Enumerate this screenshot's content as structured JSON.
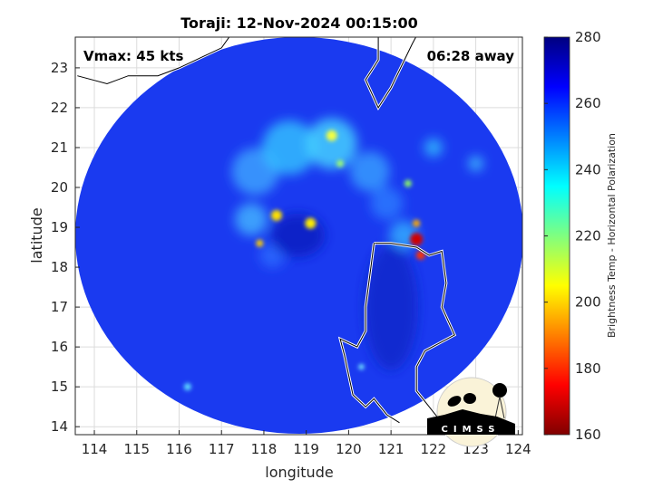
{
  "chart_data": {
    "type": "heatmap",
    "title": "Toraji: 12-Nov-2024 00:15:00",
    "xlabel": "longitude",
    "ylabel": "latitude",
    "xlim": [
      113.55,
      124.1
    ],
    "ylim": [
      13.8,
      23.77
    ],
    "xticks": [
      114,
      115,
      116,
      117,
      118,
      119,
      120,
      121,
      122,
      123,
      124
    ],
    "yticks": [
      14,
      15,
      16,
      17,
      18,
      19,
      20,
      21,
      22,
      23
    ],
    "grid": true,
    "colorbar": {
      "label": "Brightness Temp - Horizontal Polarization",
      "range": [
        160,
        280
      ],
      "ticks": [
        160,
        180,
        200,
        220,
        240,
        260,
        280
      ],
      "colormap": "jet"
    },
    "annotations": {
      "vmax": "Vmax: 45 kts",
      "time_away": "06:28 away"
    },
    "storm_center": {
      "lon": 118.8,
      "lat": 18.8
    },
    "logo": "CIMSS"
  }
}
